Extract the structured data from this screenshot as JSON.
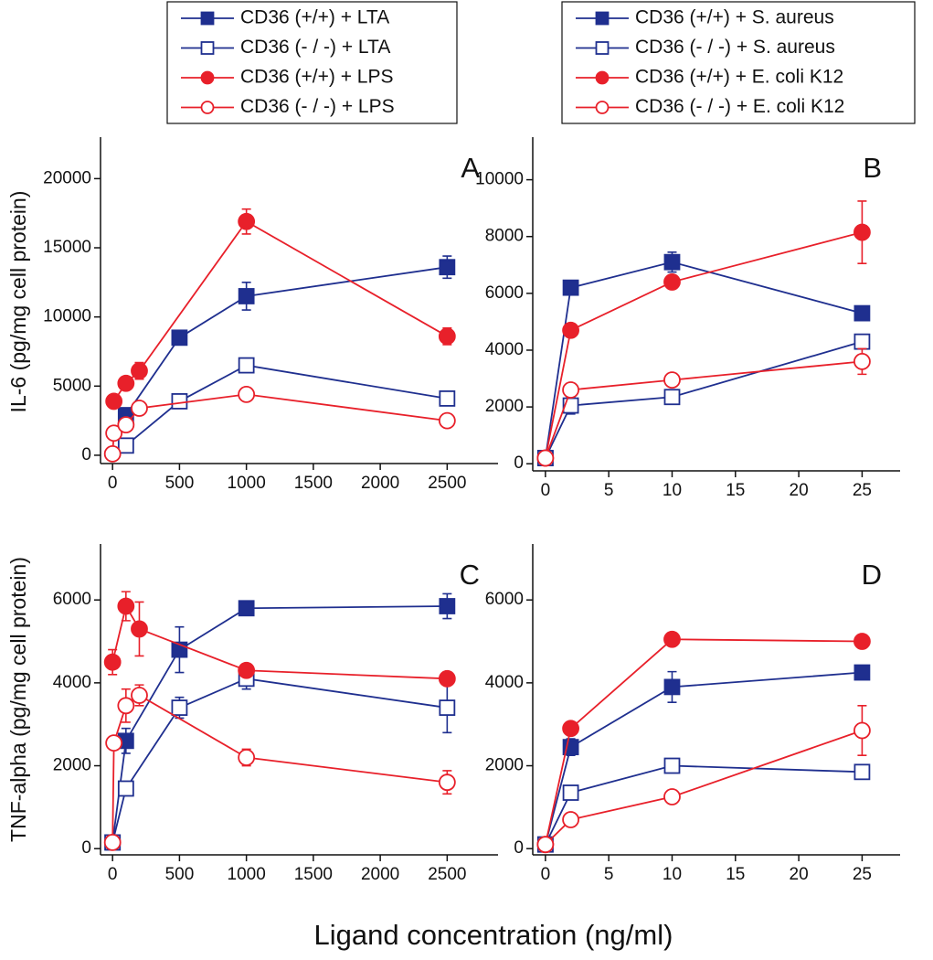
{
  "xlabel": "Ligand concentration (ng/ml)",
  "chart_data": [
    {
      "type": "line",
      "label": "A",
      "ylabel": "IL-6 (pg/mg cell protein)",
      "xlim": [
        -90,
        2880
      ],
      "xticks": [
        0,
        500,
        1000,
        1500,
        2000,
        2500
      ],
      "ylim": [
        -600,
        23000
      ],
      "yticks": [
        0,
        5000,
        10000,
        15000,
        20000
      ],
      "series": [
        {
          "name": "CD36 (+/+) + LTA",
          "color": "#1f2f8f",
          "marker": "square",
          "filled": true,
          "x": [
            100,
            500,
            1000,
            2500
          ],
          "values": [
            2900,
            8500,
            11500,
            13600
          ],
          "error": [
            null,
            null,
            1000,
            800
          ]
        },
        {
          "name": "CD36 (- / -) + LTA",
          "color": "#1f2f8f",
          "marker": "square",
          "filled": false,
          "x": [
            100,
            500,
            1000,
            2500
          ],
          "values": [
            700,
            3900,
            6500,
            4100
          ],
          "error": [
            null,
            null,
            null,
            null
          ]
        },
        {
          "name": "CD36 (+/+) + LPS",
          "color": "#e8202a",
          "marker": "circle",
          "filled": true,
          "x": [
            10,
            100,
            200,
            1000,
            2500
          ],
          "values": [
            3900,
            5200,
            6100,
            16900,
            8600
          ],
          "error": [
            null,
            null,
            600,
            900,
            600
          ]
        },
        {
          "name": "CD36 (- / -) + LPS",
          "color": "#e8202a",
          "marker": "circle",
          "filled": false,
          "x": [
            0,
            10,
            100,
            200,
            1000,
            2500
          ],
          "values": [
            100,
            1600,
            2200,
            3400,
            4400,
            2500
          ],
          "error": [
            null,
            null,
            null,
            null,
            null,
            null
          ]
        }
      ]
    },
    {
      "type": "line",
      "label": "B",
      "xlim": [
        -1,
        28
      ],
      "xticks": [
        0,
        5,
        10,
        15,
        20,
        25
      ],
      "ylim": [
        -250,
        11500
      ],
      "yticks": [
        0,
        2000,
        4000,
        6000,
        8000,
        10000
      ],
      "series": [
        {
          "name": "CD36 (+/+) + S. aureus",
          "color": "#1f2f8f",
          "marker": "square",
          "filled": true,
          "x": [
            0,
            2,
            10,
            25
          ],
          "values": [
            200,
            6200,
            7100,
            5300
          ],
          "error": [
            null,
            null,
            350,
            null
          ]
        },
        {
          "name": "CD36 (- / -) + S. aureus",
          "color": "#1f2f8f",
          "marker": "square",
          "filled": false,
          "x": [
            0,
            2,
            10,
            25
          ],
          "values": [
            200,
            2050,
            2350,
            4300
          ],
          "error": [
            null,
            300,
            200,
            null
          ]
        },
        {
          "name": "CD36 (+/+) + E. coli  K12",
          "color": "#e8202a",
          "marker": "circle",
          "filled": true,
          "x": [
            0,
            2,
            10,
            25
          ],
          "values": [
            200,
            4700,
            6400,
            8150
          ],
          "error": [
            null,
            null,
            null,
            1100
          ]
        },
        {
          "name": "CD36 (- / -) + E. coli K12",
          "color": "#e8202a",
          "marker": "circle",
          "filled": false,
          "x": [
            0,
            2,
            10,
            25
          ],
          "values": [
            200,
            2600,
            2950,
            3600
          ],
          "error": [
            null,
            null,
            200,
            450
          ]
        }
      ]
    },
    {
      "type": "line",
      "label": "C",
      "ylabel": "TNF-alpha (pg/mg cell protein)",
      "xlim": [
        -90,
        2880
      ],
      "xticks": [
        0,
        500,
        1000,
        1500,
        2000,
        2500
      ],
      "ylim": [
        -150,
        7350
      ],
      "yticks": [
        0,
        2000,
        4000,
        6000
      ],
      "series": [
        {
          "color": "#1f2f8f",
          "marker": "square",
          "filled": true,
          "x": [
            0,
            100,
            500,
            1000,
            2500
          ],
          "values": [
            150,
            2600,
            4800,
            5800,
            5850
          ],
          "error": [
            null,
            300,
            550,
            150,
            300
          ]
        },
        {
          "color": "#1f2f8f",
          "marker": "square",
          "filled": false,
          "x": [
            0,
            100,
            500,
            1000,
            2500
          ],
          "values": [
            150,
            1450,
            3400,
            4100,
            3400
          ],
          "error": [
            null,
            null,
            250,
            250,
            600
          ]
        },
        {
          "color": "#e8202a",
          "marker": "circle",
          "filled": true,
          "x": [
            0,
            100,
            200,
            1000,
            2500
          ],
          "values": [
            4500,
            5850,
            5300,
            4300,
            4100
          ],
          "error": [
            300,
            350,
            650,
            null,
            null
          ]
        },
        {
          "color": "#e8202a",
          "marker": "circle",
          "filled": false,
          "x": [
            0,
            10,
            100,
            200,
            1000,
            2500
          ],
          "values": [
            150,
            2550,
            3450,
            3700,
            2200,
            1600
          ],
          "error": [
            null,
            null,
            400,
            250,
            200,
            280
          ]
        }
      ]
    },
    {
      "type": "line",
      "label": "D",
      "xlim": [
        -1,
        28
      ],
      "xticks": [
        0,
        5,
        10,
        15,
        20,
        25
      ],
      "ylim": [
        -150,
        7350
      ],
      "yticks": [
        0,
        2000,
        4000,
        6000
      ],
      "series": [
        {
          "color": "#1f2f8f",
          "marker": "square",
          "filled": true,
          "x": [
            0,
            2,
            10,
            25
          ],
          "values": [
            100,
            2450,
            3900,
            4250
          ],
          "error": [
            null,
            200,
            370,
            null
          ]
        },
        {
          "color": "#1f2f8f",
          "marker": "square",
          "filled": false,
          "x": [
            0,
            2,
            10,
            25
          ],
          "values": [
            100,
            1350,
            2000,
            1850
          ],
          "error": [
            null,
            null,
            100,
            100
          ]
        },
        {
          "color": "#e8202a",
          "marker": "circle",
          "filled": true,
          "x": [
            0,
            2,
            10,
            25
          ],
          "values": [
            100,
            2900,
            5050,
            5000
          ],
          "error": [
            null,
            null,
            null,
            null
          ]
        },
        {
          "color": "#e8202a",
          "marker": "circle",
          "filled": false,
          "x": [
            0,
            2,
            10,
            25
          ],
          "values": [
            100,
            700,
            1250,
            2850
          ],
          "error": [
            null,
            null,
            null,
            600
          ]
        }
      ]
    }
  ]
}
